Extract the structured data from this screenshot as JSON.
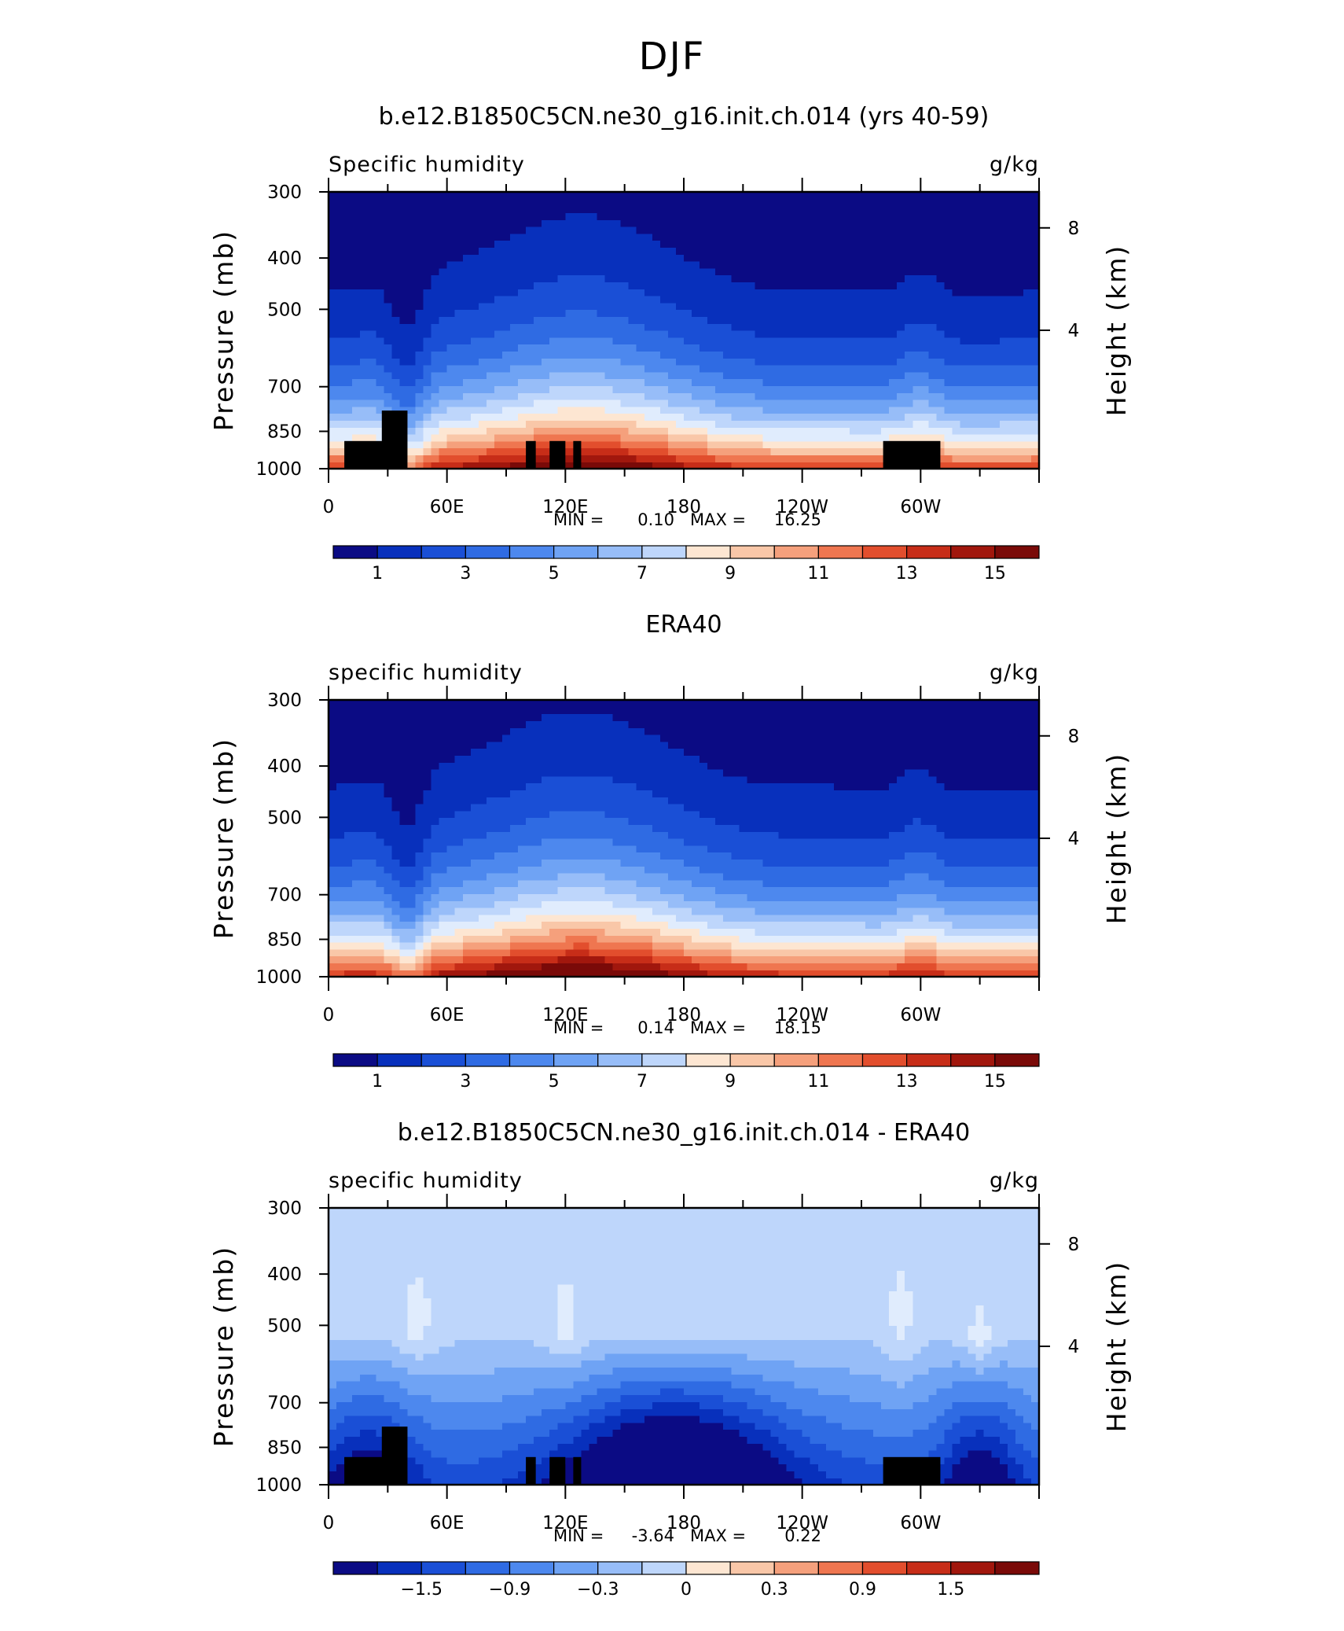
{
  "figure": {
    "title": "DJF"
  },
  "colors": {
    "scale": [
      "#0b0b84",
      "#0830bc",
      "#1a4fd6",
      "#2f6be3",
      "#4d88ee",
      "#6fa3f4",
      "#97bdf8",
      "#bed6fb",
      "#e0ecfd",
      "#fde6d2",
      "#f9c7a8",
      "#f5a07c",
      "#ef7650",
      "#e24e2d",
      "#c72d18",
      "#a1170d",
      "#7a0a08"
    ],
    "land": "#000000"
  },
  "chart_data": [
    {
      "type": "contour",
      "id": "model",
      "title": "b.e12.B1850C5CN.ne30_g16.init.ch.014 (yrs 40-59)",
      "left_label": "Specific humidity",
      "right_label": "g/kg",
      "ylabel": "Pressure (mb)",
      "ylabel_right": "Height (km)",
      "yticks": [
        "300",
        "400",
        "500",
        "700",
        "850",
        "1000"
      ],
      "yticks_right": [
        "8",
        "4"
      ],
      "xticks": [
        "0",
        "60E",
        "120E",
        "180",
        "120W",
        "60W"
      ],
      "xlim": [
        0,
        360
      ],
      "ylim": [
        1000,
        300
      ],
      "stats": {
        "min_label": "MIN =",
        "min": "0.10",
        "max_label": "MAX =",
        "max": "16.25"
      },
      "colorbar_labels": [
        "1",
        "3",
        "5",
        "7",
        "9",
        "11",
        "13",
        "15"
      ],
      "levels_min": 0.1,
      "levels_max": 16.25,
      "mode": "model"
    },
    {
      "type": "contour",
      "id": "obs",
      "title": "ERA40",
      "left_label": "specific humidity",
      "right_label": "g/kg",
      "ylabel": "Pressure (mb)",
      "ylabel_right": "Height (km)",
      "yticks": [
        "300",
        "400",
        "500",
        "700",
        "850",
        "1000"
      ],
      "yticks_right": [
        "8",
        "4"
      ],
      "xticks": [
        "0",
        "60E",
        "120E",
        "180",
        "120W",
        "60W"
      ],
      "xlim": [
        0,
        360
      ],
      "ylim": [
        1000,
        300
      ],
      "stats": {
        "min_label": "MIN =",
        "min": "0.14",
        "max_label": "MAX =",
        "max": "18.15"
      },
      "colorbar_labels": [
        "1",
        "3",
        "5",
        "7",
        "9",
        "11",
        "13",
        "15"
      ],
      "levels_min": 0.14,
      "levels_max": 18.15,
      "mode": "obs"
    },
    {
      "type": "contour",
      "id": "diff",
      "title": "b.e12.B1850C5CN.ne30_g16.init.ch.014 - ERA40",
      "left_label": "specific humidity",
      "right_label": "g/kg",
      "ylabel": "Pressure (mb)",
      "ylabel_right": "Height (km)",
      "yticks": [
        "300",
        "400",
        "500",
        "700",
        "850",
        "1000"
      ],
      "yticks_right": [
        "8",
        "4"
      ],
      "xticks": [
        "0",
        "60E",
        "120E",
        "180",
        "120W",
        "60W"
      ],
      "xlim": [
        0,
        360
      ],
      "ylim": [
        1000,
        300
      ],
      "stats": {
        "min_label": "MIN =",
        "min": "-3.64",
        "max_label": "MAX =",
        "max": "0.22"
      },
      "colorbar_labels": [
        "−1.5",
        "−0.9",
        "−0.3",
        "0",
        "0.3",
        "0.9",
        "1.5"
      ],
      "levels_min": -3.64,
      "levels_max": 0.22,
      "mode": "diff"
    }
  ]
}
